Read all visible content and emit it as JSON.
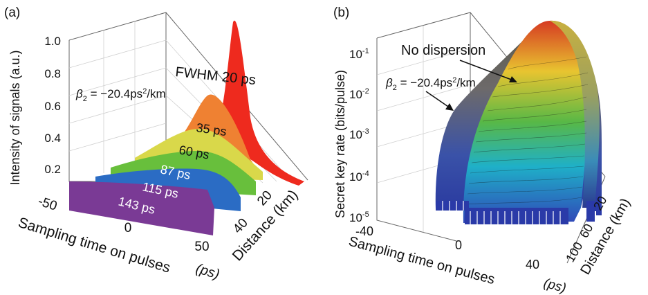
{
  "chart_data": [
    {
      "panel": "(a)",
      "type": "area",
      "ylabel": "Intensity of signals (a.u.)",
      "xlabel": "Sampling time on pulses",
      "xunit": "(ps)",
      "zlabel": "Distance (km)",
      "yticks": [
        "1.0",
        "0.8",
        "0.6",
        "0.4",
        "0.2"
      ],
      "xticks": [
        "-50",
        "0",
        "50"
      ],
      "zticks": [
        "20",
        "40"
      ],
      "annotation": "β2 = −20.4ps²/km",
      "series": [
        {
          "label": "FWHM 20 ps",
          "color": "#ee2a1e",
          "width": 20,
          "distance": 0,
          "peak": 1.0
        },
        {
          "label": "35 ps",
          "color": "#ef8132",
          "width": 35,
          "distance": 8,
          "peak": 0.5
        },
        {
          "label": "60 ps",
          "color": "#d9d84a",
          "width": 60,
          "distance": 16,
          "peak": 0.33
        },
        {
          "label": "87 ps",
          "color": "#68bf3c",
          "width": 87,
          "distance": 24,
          "peak": 0.23
        },
        {
          "label": "115 ps",
          "color": "#2b6cc4",
          "width": 115,
          "distance": 32,
          "peak": 0.17
        },
        {
          "label": "143 ps",
          "color": "#7a3a95",
          "width": 143,
          "distance": 40,
          "peak": 0.14
        }
      ]
    },
    {
      "panel": "(b)",
      "type": "area",
      "ylabel": "Secret key rate (bits/pulse)",
      "xlabel": "Sampling time on pulses",
      "xunit": "(ps)",
      "zlabel": "Distance (km)",
      "yticks": [
        "10-1",
        "10-2",
        "10-3",
        "10-4",
        "10-5"
      ],
      "yticks_base": "10",
      "yticks_exp": [
        "-1",
        "-2",
        "-3",
        "-4",
        "-5"
      ],
      "xticks": [
        "-40",
        "0",
        "40"
      ],
      "zticks": [
        "20",
        "60",
        "100"
      ],
      "annotations": [
        "No dispersion",
        "β2 = −20.4ps²/km"
      ]
    }
  ]
}
